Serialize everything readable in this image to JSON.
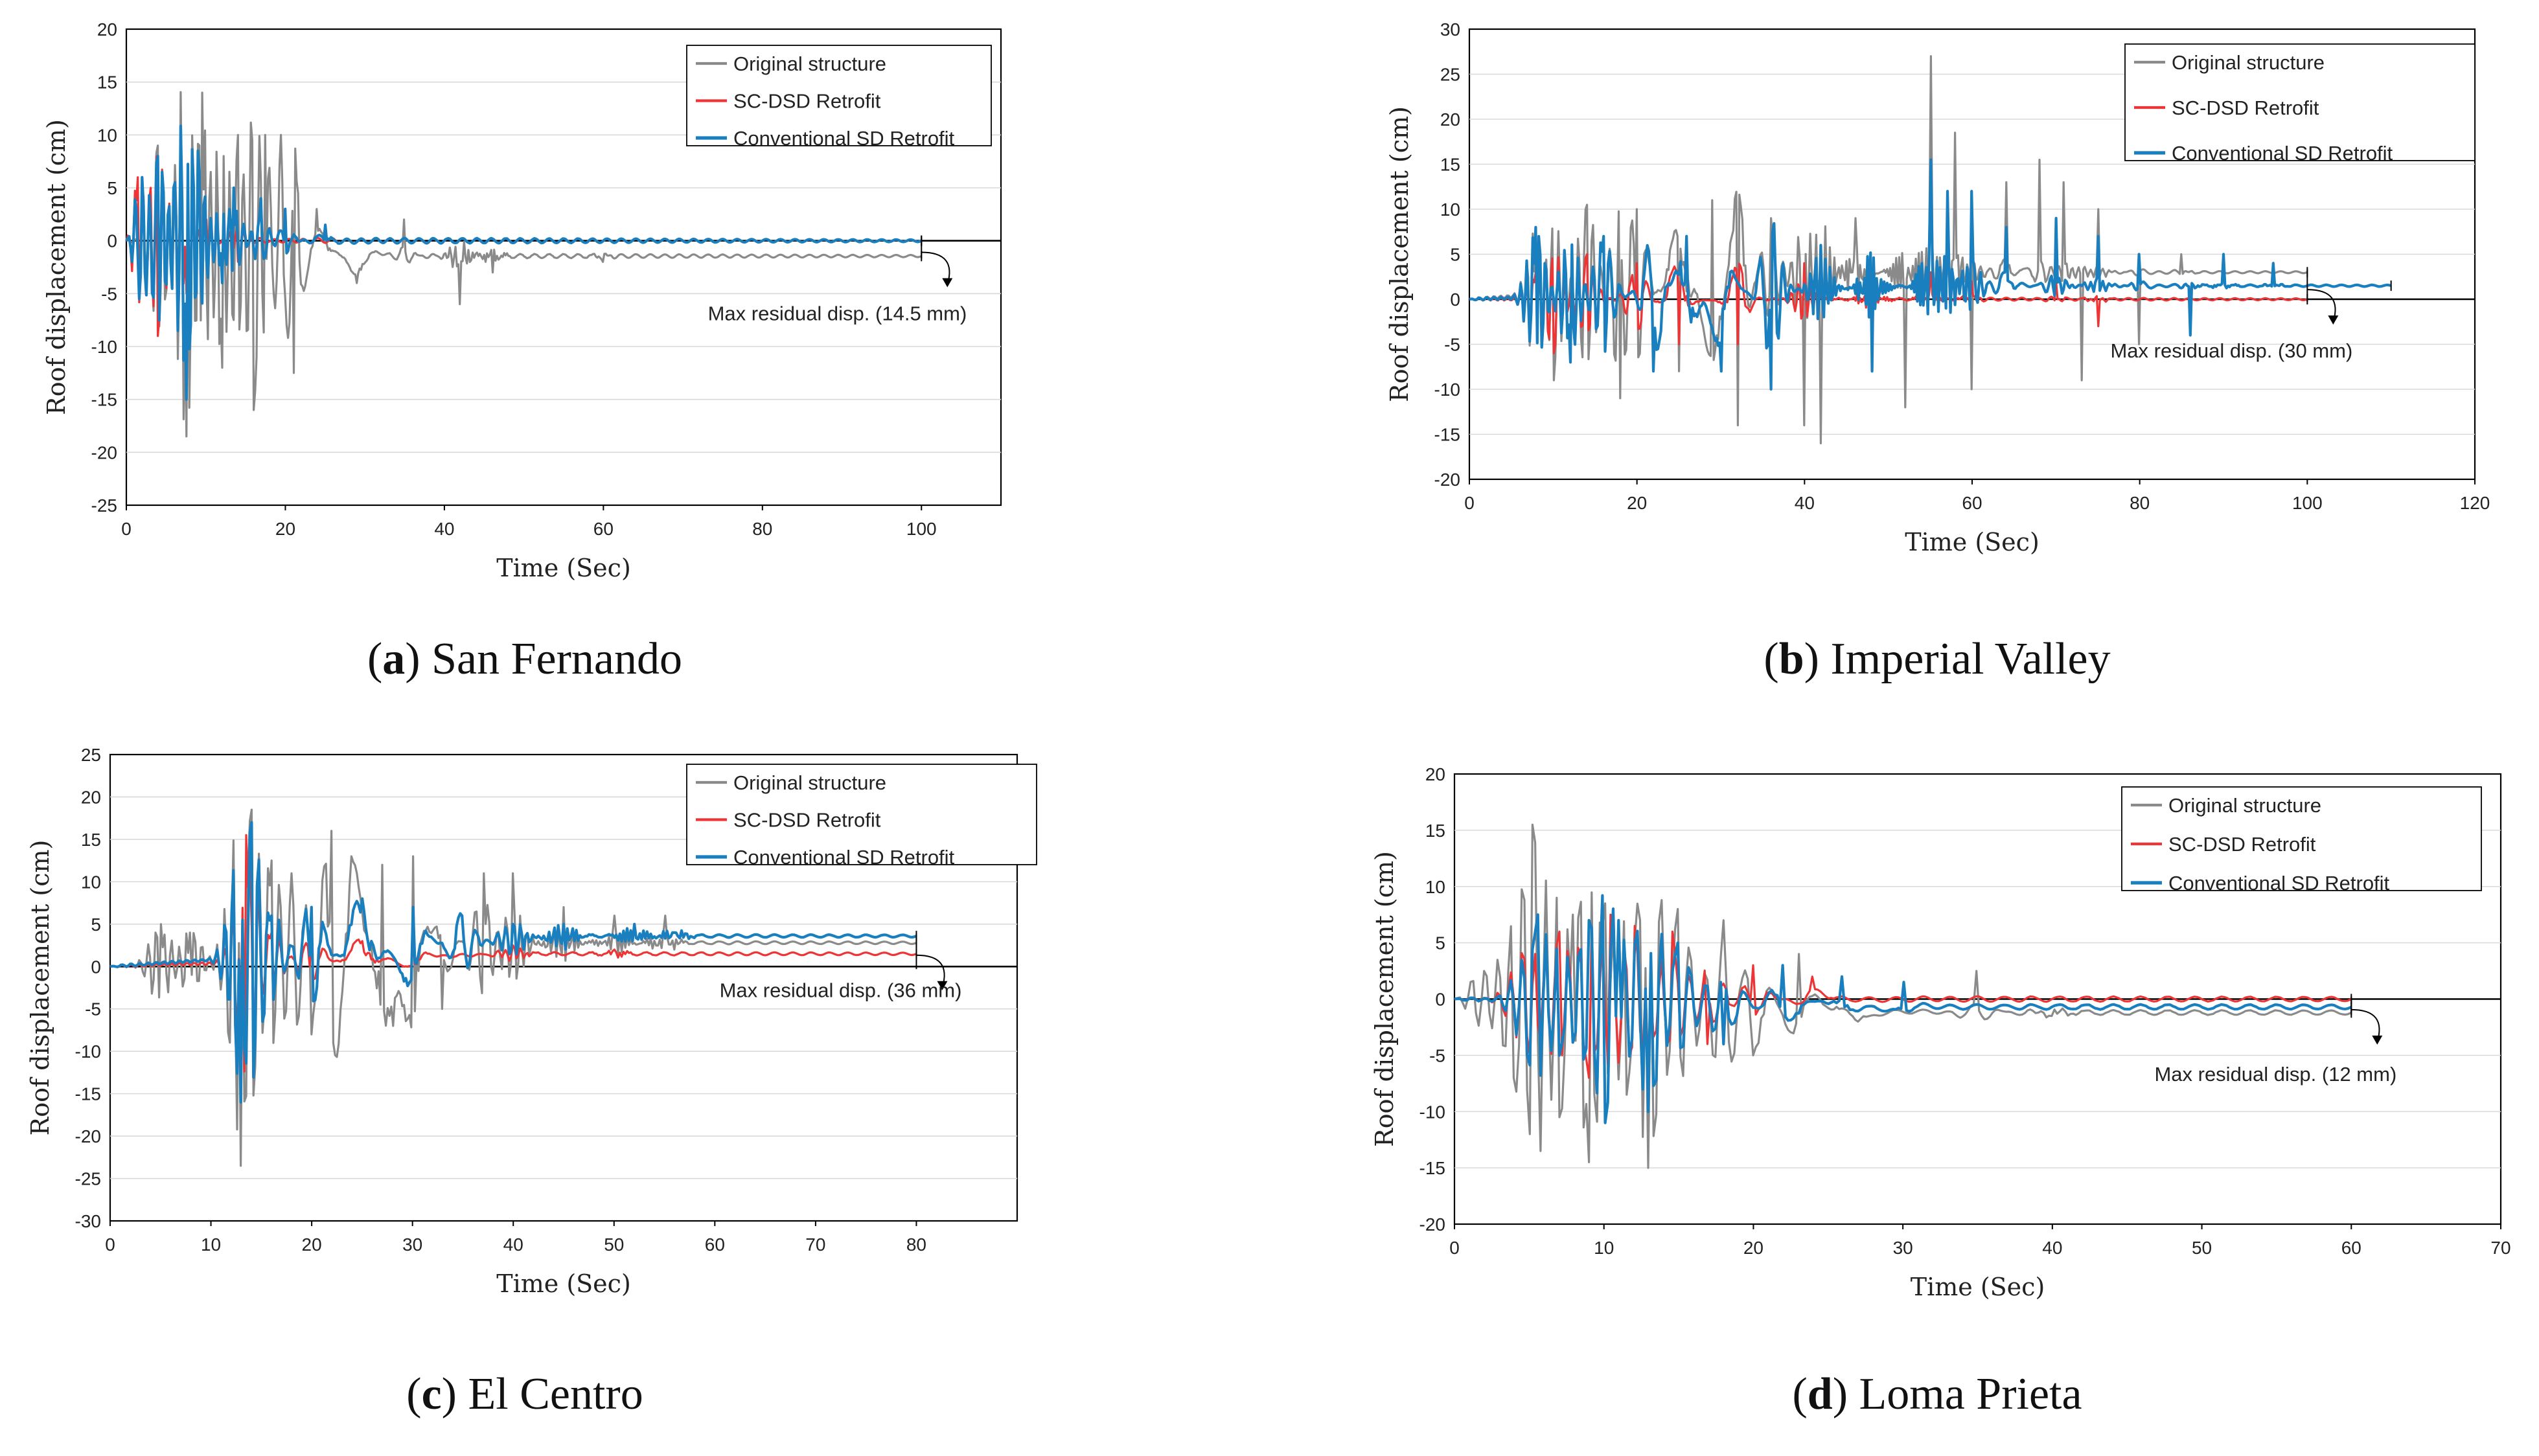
{
  "colors": {
    "original": "#8a8a8a",
    "scdsd": "#ee3434",
    "conventional": "#1a7fbf",
    "grid": "#d9d9d9",
    "axis": "#000000"
  },
  "chart_data": [
    {
      "type": "line",
      "caption": {
        "letter": "a",
        "name": "San Fernando",
        "open": "(",
        "close": ")"
      },
      "xlabel": "Time (Sec)",
      "ylabel": "Roof  displacement (cm)",
      "xlim": [
        0,
        110
      ],
      "ylim": [
        -25,
        20
      ],
      "xticks": [
        "0",
        "20",
        "40",
        "60",
        "80",
        "100"
      ],
      "yticks": [
        "-25",
        "-20",
        "-15",
        "-10",
        "-5",
        "0",
        "5",
        "10",
        "15",
        "20"
      ],
      "legend": [
        "Original structure",
        "SC-DSD Retrofit",
        "Conventional SD Retrofit"
      ],
      "annotation": "Max residual disp. (14.5 mm)",
      "series": [
        {
          "name": "Original structure",
          "end_x": 100,
          "residual": -1.45,
          "peaks": [
            [
              4,
              9
            ],
            [
              7.5,
              -18.5
            ],
            [
              9.5,
              14
            ],
            [
              12,
              -12
            ],
            [
              14,
              10
            ],
            [
              16,
              -16
            ],
            [
              17.5,
              10
            ],
            [
              19.5,
              10
            ],
            [
              21,
              -12.5
            ],
            [
              24,
              3
            ],
            [
              29,
              -4
            ],
            [
              35,
              2
            ],
            [
              42,
              -6
            ],
            [
              46,
              -3
            ],
            [
              60,
              -2
            ]
          ],
          "decay": 22
        },
        {
          "name": "SC-DSD Retrofit",
          "end_x": 100,
          "residual": 0,
          "peaks": [
            [
              1.5,
              6
            ],
            [
              3,
              5
            ],
            [
              4,
              -9
            ],
            [
              6,
              5
            ],
            [
              7.5,
              -5
            ],
            [
              10,
              2
            ],
            [
              14,
              -2
            ]
          ],
          "decay": 7
        },
        {
          "name": "Conventional SD Retrofit",
          "end_x": 100,
          "residual": 0,
          "peaks": [
            [
              2,
              6
            ],
            [
              4,
              8
            ],
            [
              6,
              5
            ],
            [
              7.5,
              -15
            ],
            [
              9,
              8.5
            ],
            [
              12,
              -4
            ],
            [
              13.5,
              5
            ],
            [
              17,
              4
            ],
            [
              20,
              3
            ],
            [
              25,
              1.5
            ]
          ],
          "decay": 10
        }
      ]
    },
    {
      "type": "line",
      "caption": {
        "letter": "b",
        "name": "Imperial Valley",
        "open": "(",
        "close": ")"
      },
      "xlabel": "Time (Sec)",
      "ylabel": "Roof  displacement (cm)",
      "xlim": [
        0,
        120
      ],
      "ylim": [
        -20,
        30
      ],
      "xticks": [
        "0",
        "20",
        "40",
        "60",
        "80",
        "100",
        "120"
      ],
      "yticks": [
        "-20",
        "-15",
        "-10",
        "-5",
        "0",
        "5",
        "10",
        "15",
        "20",
        "25",
        "30"
      ],
      "legend": [
        "Original structure",
        "SC-DSD Retrofit",
        "Conventional SD Retrofit"
      ],
      "annotation": "Max residual disp. (30 mm)",
      "series": [
        {
          "name": "Original structure",
          "end_x": 100,
          "residual": 3.0,
          "peaks": [
            [
              8,
              8
            ],
            [
              10,
              -9
            ],
            [
              14,
              10.5
            ],
            [
              18,
              -11
            ],
            [
              20,
              10
            ],
            [
              25,
              -8
            ],
            [
              29,
              11
            ],
            [
              32,
              -14
            ],
            [
              36,
              9
            ],
            [
              40,
              -14
            ],
            [
              42,
              -16
            ],
            [
              46,
              9
            ],
            [
              52,
              -12
            ],
            [
              55,
              27
            ],
            [
              58,
              18.5
            ],
            [
              60,
              -10
            ],
            [
              64,
              13
            ],
            [
              68,
              15.5
            ],
            [
              71,
              13
            ],
            [
              73,
              -9
            ],
            [
              75,
              10
            ],
            [
              80,
              -5
            ],
            [
              85,
              5
            ]
          ],
          "decay": 30
        },
        {
          "name": "SC-DSD Retrofit",
          "end_x": 100,
          "residual": 0,
          "peaks": [
            [
              8,
              3
            ],
            [
              10,
              -6
            ],
            [
              14,
              5
            ],
            [
              20,
              4
            ],
            [
              25,
              -5
            ],
            [
              32,
              -5
            ],
            [
              40,
              4
            ],
            [
              48,
              -4
            ],
            [
              55,
              3
            ],
            [
              60,
              2
            ],
            [
              70,
              2
            ],
            [
              75,
              -3
            ]
          ],
          "decay": 35
        },
        {
          "name": "Conventional SD Retrofit",
          "end_x": 110,
          "residual": 1.5,
          "peaks": [
            [
              8,
              8
            ],
            [
              12,
              -7
            ],
            [
              16,
              7
            ],
            [
              22,
              -8
            ],
            [
              26,
              7
            ],
            [
              30,
              -8
            ],
            [
              36,
              -10
            ],
            [
              42,
              6
            ],
            [
              48,
              -8
            ],
            [
              55,
              15.5
            ],
            [
              57,
              12
            ],
            [
              60,
              12
            ],
            [
              64,
              8
            ],
            [
              70,
              9
            ],
            [
              75,
              7
            ],
            [
              80,
              5
            ],
            [
              86,
              -4
            ],
            [
              90,
              5
            ],
            [
              96,
              4
            ]
          ],
          "decay": 40
        }
      ]
    },
    {
      "type": "line",
      "caption": {
        "letter": "c",
        "name": "El Centro",
        "open": "(",
        "close": ")"
      },
      "xlabel": "Time (Sec)",
      "ylabel": "Roof  displacement (cm)",
      "xlim": [
        0,
        90
      ],
      "ylim": [
        -30,
        25
      ],
      "xticks": [
        "0",
        "10",
        "20",
        "30",
        "40",
        "50",
        "60",
        "70",
        "80"
      ],
      "yticks": [
        "-30",
        "-25",
        "-20",
        "-15",
        "-10",
        "-5",
        "0",
        "5",
        "10",
        "15",
        "20",
        "25"
      ],
      "legend": [
        "Original structure",
        "SC-DSD Retrofit",
        "Conventional SD Retrofit"
      ],
      "annotation": "Max residual disp. (36 mm)",
      "series": [
        {
          "name": "Original structure",
          "end_x": 80,
          "residual": 2.8,
          "peaks": [
            [
              5,
              5
            ],
            [
              8,
              4
            ],
            [
              12,
              5
            ],
            [
              13,
              -23.5
            ],
            [
              14,
              18.5
            ],
            [
              16,
              12.5
            ],
            [
              18,
              11
            ],
            [
              20,
              -8
            ],
            [
              22,
              16
            ],
            [
              24,
              13
            ],
            [
              27,
              12
            ],
            [
              28,
              -7
            ],
            [
              30,
              13
            ],
            [
              33,
              -5
            ],
            [
              37,
              11
            ],
            [
              40,
              11
            ],
            [
              45,
              7
            ],
            [
              50,
              6
            ],
            [
              55,
              6
            ]
          ],
          "decay": 30
        },
        {
          "name": "SC-DSD Retrofit",
          "end_x": 80,
          "residual": 1.5,
          "peaks": [
            [
              13,
              -5
            ],
            [
              13.5,
              15.5
            ],
            [
              16,
              4
            ],
            [
              20,
              3
            ],
            [
              25,
              3
            ],
            [
              30,
              2.5
            ],
            [
              40,
              2.5
            ],
            [
              50,
              2
            ]
          ],
          "decay": 25
        },
        {
          "name": "Conventional SD Retrofit",
          "end_x": 80,
          "residual": 3.6,
          "peaks": [
            [
              13,
              -16
            ],
            [
              14,
              17
            ],
            [
              16,
              6
            ],
            [
              20,
              7
            ],
            [
              25,
              8
            ],
            [
              30,
              7
            ],
            [
              35,
              6
            ],
            [
              40,
              5
            ],
            [
              45,
              5
            ],
            [
              52,
              5
            ],
            [
              56,
              4
            ]
          ],
          "decay": 30
        }
      ]
    },
    {
      "type": "line",
      "caption": {
        "letter": "d",
        "name": "Loma Prieta",
        "open": "(",
        "close": ")"
      },
      "xlabel": "Time (Sec)",
      "ylabel": "Roof  displacement (cm)",
      "xlim": [
        0,
        70
      ],
      "ylim": [
        -20,
        20
      ],
      "xticks": [
        "0",
        "10",
        "20",
        "30",
        "40",
        "50",
        "60",
        "70"
      ],
      "yticks": [
        "-20",
        "-15",
        "-10",
        "-5",
        "0",
        "5",
        "10",
        "15",
        "20"
      ],
      "legend": [
        "Original structure",
        "SC-DSD Retrofit",
        "Conventional SD Retrofit"
      ],
      "annotation": "Max residual disp. (12 mm)",
      "series": [
        {
          "name": "Original structure",
          "end_x": 60,
          "residual": -1.2,
          "peaks": [
            [
              2,
              2.5
            ],
            [
              4,
              -7
            ],
            [
              5.3,
              15.5
            ],
            [
              7,
              -10.5
            ],
            [
              8,
              7.5
            ],
            [
              9,
              -14.5
            ],
            [
              10,
              8.5
            ],
            [
              11.5,
              -8.5
            ],
            [
              12.5,
              7
            ],
            [
              13,
              -15
            ],
            [
              15,
              8
            ],
            [
              18,
              7
            ],
            [
              20,
              -5
            ],
            [
              23,
              4
            ],
            [
              27,
              -2
            ],
            [
              35,
              2.5
            ],
            [
              40,
              -1.5
            ]
          ],
          "decay": 18
        },
        {
          "name": "SC-DSD Retrofit",
          "end_x": 60,
          "residual": 0,
          "peaks": [
            [
              5,
              -5
            ],
            [
              7,
              6
            ],
            [
              9,
              -7
            ],
            [
              10.5,
              7.5
            ],
            [
              12,
              6.5
            ],
            [
              13,
              -6
            ],
            [
              14.5,
              6
            ],
            [
              17,
              -4
            ],
            [
              20,
              3
            ],
            [
              24,
              2
            ]
          ],
          "decay": 12
        },
        {
          "name": "Conventional SD Retrofit",
          "end_x": 60,
          "residual": -0.7,
          "peaks": [
            [
              5.5,
              7.5
            ],
            [
              7,
              -5
            ],
            [
              9,
              7
            ],
            [
              10,
              -11
            ],
            [
              11,
              7
            ],
            [
              13,
              -10
            ],
            [
              15,
              5
            ],
            [
              18,
              -4
            ],
            [
              22,
              3
            ],
            [
              26,
              2
            ],
            [
              30,
              1.5
            ]
          ],
          "decay": 16
        }
      ]
    }
  ]
}
